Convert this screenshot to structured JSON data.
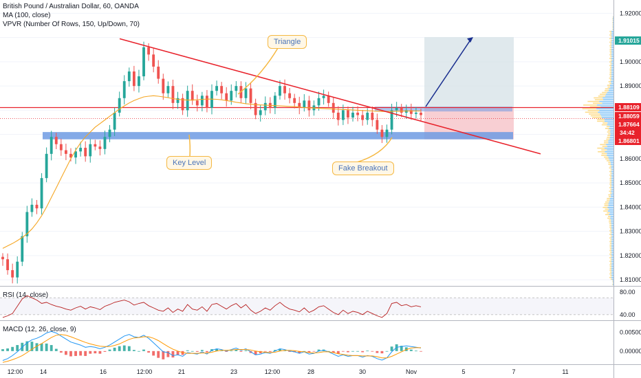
{
  "header": {
    "symbol_title": "British Pound / Australian Dollar, 60, OANDA",
    "indicator_1": "MA (100, close)",
    "indicator_2": "VPVR (Number Of Rows, 150, Up/Down, 70)"
  },
  "annotations": {
    "triangle": "Triangle",
    "key_level": "Key Level",
    "fake_breakout": "Fake Breakout"
  },
  "colors": {
    "up": "#26a69a",
    "down": "#ef5350",
    "ma": "#f5a623",
    "trendline": "#e8222b",
    "key_level_band": "#6f9be3",
    "target_zone": "#d8e4e8",
    "stop_zone": "#f6c3c8",
    "arrow": "#1a2f8f",
    "vp_up": "#2196f3",
    "vp_down": "#fbc02d",
    "rsi_line": "#b71c1c",
    "macd_line": "#2196f3",
    "signal_line": "#ff9800"
  },
  "chart_data": [
    {
      "type": "candlestick",
      "panel": "price",
      "y_axis_ticks": [
        "1.92000",
        "1.91015",
        "1.90000",
        "1.89000",
        "1.88109",
        "1.88059",
        "1.87664",
        "1.86801",
        "1.86000",
        "1.85000",
        "1.84000",
        "1.83000",
        "1.82000",
        "1.81000"
      ],
      "ylim": [
        1.8075,
        1.9255
      ],
      "x_tick_labels": [
        "12:00",
        "14",
        "16",
        "12:00",
        "21",
        "23",
        "12:00",
        "28",
        "30",
        "Nov",
        "5",
        "7",
        "11"
      ],
      "price_tags": [
        {
          "label": "1.91015",
          "value": 1.91015,
          "color": "#26a69a"
        },
        {
          "label": "1.88109",
          "value": 1.88109,
          "color": "#e8222b"
        },
        {
          "label": "1.88059",
          "value": 1.88059,
          "color": "#e8222b"
        },
        {
          "label": "1.87664",
          "value": 1.87664,
          "color": "#e8222b"
        },
        {
          "label": "1.86801",
          "value": 1.86801,
          "color": "#e8222b"
        }
      ],
      "countdown_label": "34:42",
      "close_series": [
        1.8185,
        1.814,
        1.811,
        1.8175,
        1.828,
        1.838,
        1.841,
        1.8395,
        1.852,
        1.862,
        1.869,
        1.866,
        1.8635,
        1.862,
        1.8605,
        1.863,
        1.8645,
        1.861,
        1.866,
        1.865,
        1.864,
        1.869,
        1.872,
        1.879,
        1.885,
        1.892,
        1.896,
        1.89,
        1.894,
        1.906,
        1.903,
        1.898,
        1.893,
        1.887,
        1.89,
        1.883,
        1.885,
        1.88,
        1.888,
        1.884,
        1.882,
        1.886,
        1.881,
        1.888,
        1.89,
        1.887,
        1.884,
        1.888,
        1.89,
        1.885,
        1.889,
        1.883,
        1.878,
        1.88,
        1.883,
        1.881,
        1.886,
        1.89,
        1.887,
        1.885,
        1.883,
        1.881,
        1.884,
        1.88,
        1.882,
        1.885,
        1.886,
        1.883,
        1.879,
        1.876,
        1.88,
        1.877,
        1.879,
        1.878,
        1.876,
        1.879,
        1.876,
        1.872,
        1.869,
        1.872,
        1.88,
        1.881,
        1.879,
        1.88,
        1.8785,
        1.879,
        1.878
      ],
      "ma_series": [
        1.823,
        1.824,
        1.825,
        1.8262,
        1.8275,
        1.829,
        1.831,
        1.8335,
        1.8365,
        1.84,
        1.844,
        1.848,
        1.852,
        1.856,
        1.86,
        1.8635,
        1.8665,
        1.869,
        1.871,
        1.873,
        1.8745,
        1.876,
        1.8775,
        1.879,
        1.8805,
        1.8818,
        1.883,
        1.884,
        1.8848,
        1.8855,
        1.8858,
        1.886,
        1.8858,
        1.8855,
        1.8852,
        1.8848,
        1.8845,
        1.8843,
        1.8842,
        1.8842,
        1.8843,
        1.8845,
        1.8846,
        1.8846,
        1.8845,
        1.8843,
        1.884,
        1.8837,
        1.8833,
        1.883,
        1.8827,
        1.8825,
        1.8823,
        1.8822,
        1.8821,
        1.882,
        1.8819,
        1.8818,
        1.8817,
        1.8816,
        1.8815,
        1.8813,
        1.8811,
        1.881,
        1.8809,
        1.8808,
        1.8807,
        1.8806,
        1.8805,
        1.8804,
        1.8803,
        1.8802,
        1.8801,
        1.88,
        1.8799,
        1.8798,
        1.8797,
        1.8796,
        1.8795,
        1.8795,
        1.8795,
        1.8796,
        1.8796,
        1.8797,
        1.8797,
        1.8797,
        1.8797
      ],
      "drawings": {
        "triangle_upper": [
          [
            1.9095
          ],
          [
            1.862
          ]
        ],
        "horizontal_resistance": 1.8811,
        "key_level_band": [
          1.868,
          1.871
        ],
        "target_zone": [
          1.8811,
          1.9102
        ],
        "stop_zone": [
          1.868,
          1.8811
        ],
        "resistance_band": [
          1.8795,
          1.8815
        ]
      }
    },
    {
      "type": "line",
      "panel": "rsi",
      "title": "RSI (14, close)",
      "y_axis_ticks": [
        "80.00",
        "40.00"
      ],
      "ylim": [
        30,
        90
      ],
      "upper_band": 70,
      "lower_band": 30,
      "series": [
        {
          "name": "RSI",
          "values": [
            35,
            38,
            42,
            55,
            68,
            74,
            70,
            66,
            60,
            62,
            58,
            55,
            53,
            50,
            48,
            52,
            55,
            50,
            54,
            52,
            49,
            55,
            58,
            62,
            64,
            66,
            63,
            57,
            60,
            62,
            56,
            52,
            48,
            46,
            52,
            44,
            50,
            46,
            58,
            50,
            48,
            54,
            46,
            58,
            60,
            55,
            50,
            56,
            60,
            52,
            58,
            48,
            42,
            46,
            52,
            48,
            56,
            62,
            55,
            50,
            48,
            45,
            52,
            44,
            48,
            54,
            56,
            50,
            44,
            40,
            48,
            42,
            46,
            44,
            40,
            46,
            42,
            38,
            35,
            42,
            60,
            62,
            56,
            58,
            54,
            56,
            54
          ]
        }
      ]
    },
    {
      "type": "line",
      "panel": "macd",
      "title": "MACD (12, 26, close, 9)",
      "y_axis_ticks": [
        "0.00500",
        "0.00000"
      ],
      "ylim": [
        -0.0035,
        0.008
      ],
      "series": [
        {
          "name": "MACD",
          "values": [
            -0.0025,
            -0.002,
            -0.0012,
            -0.0002,
            0.001,
            0.0022,
            0.003,
            0.0034,
            0.004,
            0.0048,
            0.0052,
            0.0048,
            0.004,
            0.0032,
            0.0024,
            0.002,
            0.0016,
            0.001,
            0.0012,
            0.001,
            0.0006,
            0.001,
            0.0016,
            0.0024,
            0.0032,
            0.004,
            0.0044,
            0.0038,
            0.0036,
            0.0042,
            0.0034,
            0.0022,
            0.001,
            -0.0002,
            -0.0004,
            -0.0012,
            -0.001,
            -0.0014,
            -0.0004,
            -0.0006,
            -0.0008,
            -0.0002,
            -0.0008,
            0.0002,
            0.0006,
            0.0004,
            0.0,
            0.0004,
            0.0008,
            0.0002,
            0.0006,
            -0.0002,
            -0.001,
            -0.0008,
            -0.0004,
            -0.0006,
            0.0,
            0.0006,
            0.0004,
            0.0,
            -0.0002,
            -0.0006,
            -0.0002,
            -0.0008,
            -0.0006,
            0.0,
            0.0002,
            -0.0002,
            -0.0008,
            -0.0014,
            -0.001,
            -0.0014,
            -0.0012,
            -0.0012,
            -0.0016,
            -0.0012,
            -0.0014,
            -0.002,
            -0.0024,
            -0.0018,
            -0.0002,
            0.001,
            0.0012,
            0.0014,
            0.0012,
            0.001,
            0.0008
          ]
        },
        {
          "name": "Signal",
          "values": [
            -0.003,
            -0.0027,
            -0.0023,
            -0.0018,
            -0.0012,
            -0.0004,
            0.0005,
            0.0013,
            0.002,
            0.0028,
            0.0036,
            0.0042,
            0.0044,
            0.0042,
            0.0038,
            0.0033,
            0.0028,
            0.0023,
            0.0019,
            0.0016,
            0.0013,
            0.0012,
            0.0012,
            0.0015,
            0.0019,
            0.0025,
            0.0031,
            0.0035,
            0.0036,
            0.0038,
            0.0038,
            0.0034,
            0.0028,
            0.002,
            0.0012,
            0.0005,
            0.0,
            -0.0004,
            -0.0006,
            -0.0006,
            -0.0006,
            -0.0005,
            -0.0005,
            -0.0003,
            0.0,
            0.0002,
            0.0002,
            0.0003,
            0.0004,
            0.0004,
            0.0004,
            0.0003,
            0.0,
            -0.0002,
            -0.0003,
            -0.0004,
            -0.0003,
            0.0,
            0.0002,
            0.0002,
            0.0001,
            -0.0001,
            -0.0002,
            -0.0004,
            -0.0005,
            -0.0004,
            -0.0002,
            -0.0002,
            -0.0004,
            -0.0007,
            -0.0009,
            -0.0011,
            -0.0012,
            -0.0012,
            -0.0013,
            -0.0013,
            -0.0013,
            -0.0015,
            -0.0018,
            -0.0018,
            -0.0014,
            -0.0008,
            -0.0002,
            0.0004,
            0.0008,
            0.0009,
            0.0009
          ]
        }
      ]
    }
  ]
}
